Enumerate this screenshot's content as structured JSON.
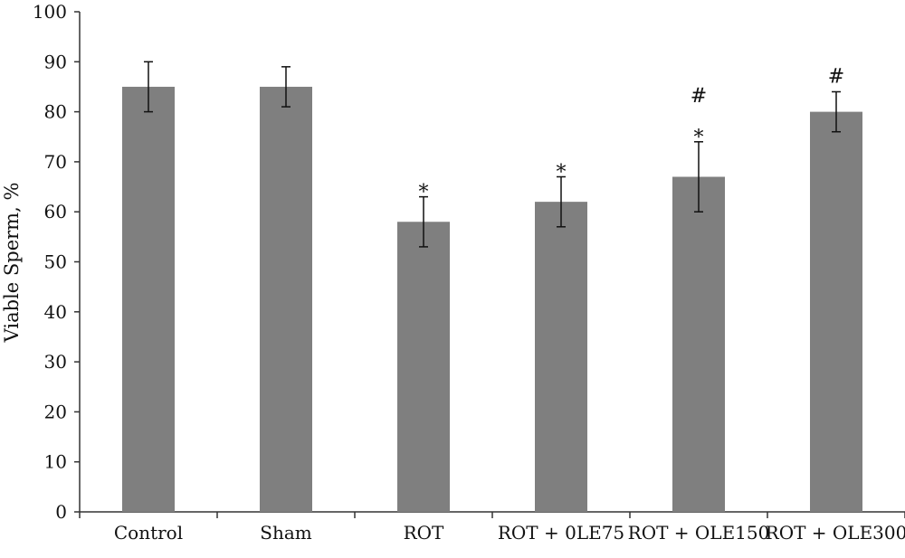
{
  "chart_data": {
    "type": "bar",
    "title": "",
    "xlabel": "",
    "ylabel": "Viable Sperm, %",
    "ylim": [
      0,
      100
    ],
    "yticks": [
      0,
      10,
      20,
      30,
      40,
      50,
      60,
      70,
      80,
      90,
      100
    ],
    "categories": [
      "Control",
      "Sham",
      "ROT",
      "ROT + 0LE75",
      "ROT + OLE150",
      "ROT + OLE300"
    ],
    "values": [
      85,
      85,
      58,
      62,
      67,
      80
    ],
    "errors": [
      5,
      4,
      5,
      5,
      7,
      4
    ],
    "annotations": [
      [],
      [],
      [
        "*"
      ],
      [
        "*"
      ],
      [
        "*",
        "#"
      ],
      [
        "#"
      ]
    ],
    "bar_color": "#7f7f7f",
    "grid": false,
    "legend": "none"
  }
}
